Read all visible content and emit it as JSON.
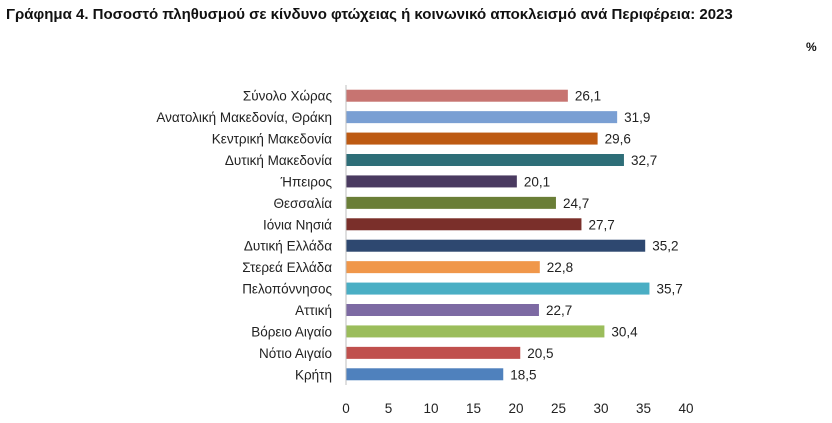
{
  "title": "Γράφημα 4. Ποσοστό πληθυσμού σε κίνδυνο φτώχειας ή κοινωνικό αποκλεισμό  ανά Περιφέρεια: 2023",
  "unit": "%",
  "chart_data": {
    "type": "bar",
    "orientation": "horizontal",
    "categories": [
      "Σύνολο Χώρας",
      "Ανατολική Μακεδονία, Θράκη",
      "Κεντρική Μακεδονία",
      "Δυτική Μακεδονία",
      "Ήπειρος",
      "Θεσσαλία",
      "Ιόνια Νησιά",
      "Δυτική Ελλάδα",
      "Στερεά Ελλάδα",
      "Πελοπόννησος",
      "Αττική",
      "Βόρειο Αιγαίο",
      "Νότιο Αιγαίο",
      "Κρήτη"
    ],
    "values": [
      26.1,
      31.9,
      29.6,
      32.7,
      20.1,
      24.7,
      27.7,
      35.2,
      22.8,
      35.7,
      22.7,
      30.4,
      20.5,
      18.5
    ],
    "value_labels": [
      "26,1",
      "31,9",
      "29,6",
      "32,7",
      "20,1",
      "24,7",
      "27,7",
      "35,2",
      "22,8",
      "35,7",
      "22,7",
      "30,4",
      "20,5",
      "18,5"
    ],
    "colors": [
      "#c77471",
      "#7a9fd3",
      "#bd5a12",
      "#2e6e78",
      "#4a3a60",
      "#6a7e37",
      "#7a2f2a",
      "#2e4870",
      "#f0974a",
      "#4aaec4",
      "#7d6aa3",
      "#9bbd5b",
      "#c0504d",
      "#4f81bd"
    ],
    "xlim": [
      0,
      40
    ],
    "xticks": [
      0,
      5,
      10,
      15,
      20,
      25,
      30,
      35,
      40
    ],
    "grid": false,
    "legend": "none"
  }
}
